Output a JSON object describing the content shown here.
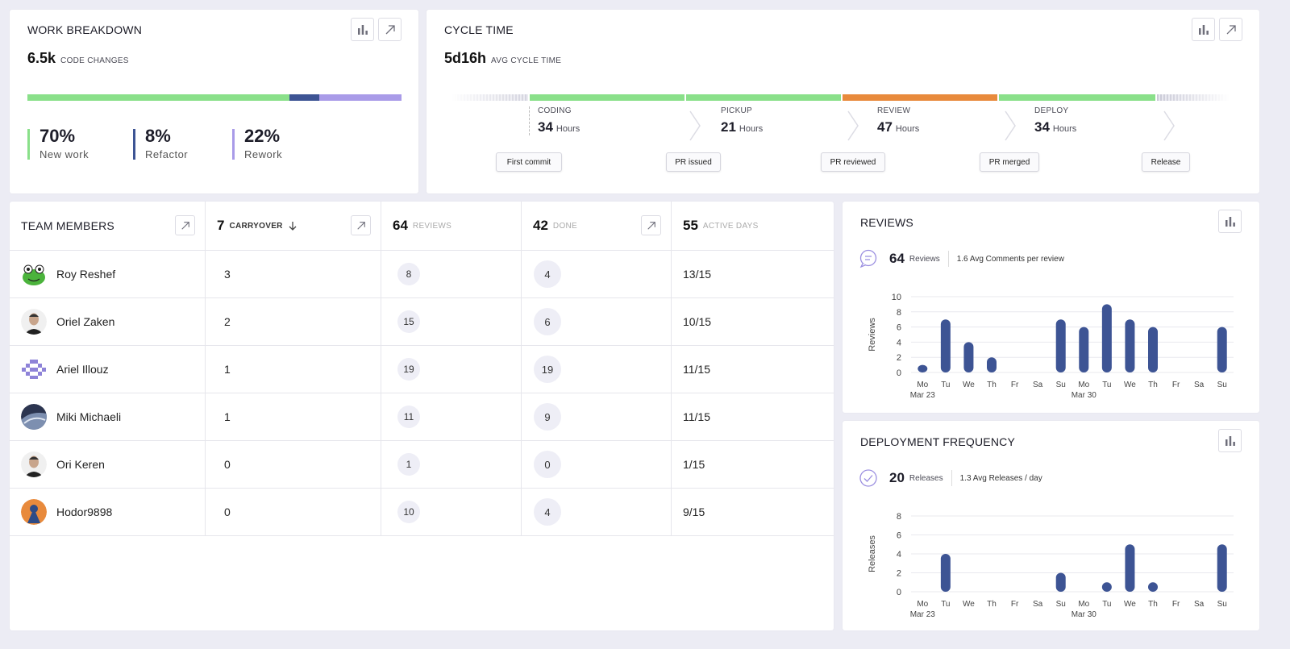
{
  "work_breakdown": {
    "title": "WORK BREAKDOWN",
    "total": "6.5k",
    "total_label": "CODE CHANGES",
    "segments": [
      {
        "pct": "70%",
        "label": "New work",
        "fraction": 0.7,
        "color": "#8ae08a"
      },
      {
        "pct": "8%",
        "label": "Refactor",
        "fraction": 0.08,
        "color": "#3d5494"
      },
      {
        "pct": "22%",
        "label": "Rework",
        "fraction": 0.22,
        "color": "#a99be8"
      }
    ]
  },
  "cycle_time": {
    "title": "CYCLE TIME",
    "value": "5d16h",
    "value_label": "AVG CYCLE TIME",
    "stages": [
      {
        "name": "CODING",
        "value": "34",
        "unit": "Hours",
        "color": "#8ae08a"
      },
      {
        "name": "PICKUP",
        "value": "21",
        "unit": "Hours",
        "color": "#8ae08a"
      },
      {
        "name": "REVIEW",
        "value": "47",
        "unit": "Hours",
        "color": "#e88a3c"
      },
      {
        "name": "DEPLOY",
        "value": "34",
        "unit": "Hours",
        "color": "#8ae08a"
      }
    ],
    "events": [
      "First commit",
      "PR issued",
      "PR reviewed",
      "PR merged",
      "Release"
    ]
  },
  "team": {
    "title": "TEAM MEMBERS",
    "columns": [
      {
        "value": "7",
        "label": "CARRYOVER"
      },
      {
        "value": "64",
        "label": "REVIEWS"
      },
      {
        "value": "42",
        "label": "DONE"
      },
      {
        "value": "55",
        "label": "ACTIVE DAYS"
      }
    ],
    "rows": [
      {
        "name": "Roy Reshef",
        "carryover": "3",
        "reviews": "8",
        "done": "4",
        "active": "13/15",
        "avatar": "frog-avatar"
      },
      {
        "name": "Oriel Zaken",
        "carryover": "2",
        "reviews": "15",
        "done": "6",
        "active": "10/15",
        "avatar": "person-avatar"
      },
      {
        "name": "Ariel Illouz",
        "carryover": "1",
        "reviews": "19",
        "done": "19",
        "active": "11/15",
        "avatar": "pixel-avatar"
      },
      {
        "name": "Miki Michaeli",
        "carryover": "1",
        "reviews": "11",
        "done": "9",
        "active": "11/15",
        "avatar": "photo-avatar"
      },
      {
        "name": "Ori Keren",
        "carryover": "0",
        "reviews": "1",
        "done": "0",
        "active": "1/15",
        "avatar": "person-avatar"
      },
      {
        "name": "Hodor9898",
        "carryover": "0",
        "reviews": "10",
        "done": "4",
        "active": "9/15",
        "avatar": "orange-avatar"
      }
    ]
  },
  "reviews": {
    "title": "REVIEWS",
    "count": "64",
    "count_label": "Reviews",
    "avg": "1.6 Avg Comments per review"
  },
  "deploy": {
    "title": "DEPLOYMENT FREQUENCY",
    "count": "20",
    "count_label": "Releases",
    "avg": "1.3 Avg Releases / day"
  },
  "chart_data": [
    {
      "type": "bar",
      "title": "REVIEWS",
      "ylabel": "Reviews",
      "ylim": [
        0,
        10
      ],
      "yticks": [
        0,
        2,
        4,
        6,
        8,
        10
      ],
      "categories": [
        "Mo",
        "Tu",
        "We",
        "Th",
        "Fr",
        "Sa",
        "Su",
        "Mo",
        "Tu",
        "We",
        "Th",
        "Fr",
        "Sa",
        "Su"
      ],
      "sublabels": [
        "Mar 23",
        "",
        "",
        "",
        "",
        "",
        "",
        "Mar 30",
        "",
        "",
        "",
        "",
        "",
        ""
      ],
      "values": [
        1,
        7,
        4,
        2,
        0,
        0,
        7,
        6,
        9,
        7,
        6,
        0,
        0,
        6
      ],
      "color": "#3d5494"
    },
    {
      "type": "bar",
      "title": "DEPLOYMENT FREQUENCY",
      "ylabel": "Releases",
      "ylim": [
        0,
        8
      ],
      "yticks": [
        0,
        2,
        4,
        6,
        8
      ],
      "categories": [
        "Mo",
        "Tu",
        "We",
        "Th",
        "Fr",
        "Sa",
        "Su",
        "Mo",
        "Tu",
        "We",
        "Th",
        "Fr",
        "Sa",
        "Su"
      ],
      "sublabels": [
        "Mar 23",
        "",
        "",
        "",
        "",
        "",
        "",
        "Mar 30",
        "",
        "",
        "",
        "",
        "",
        ""
      ],
      "values": [
        0,
        4,
        0,
        0,
        0,
        0,
        2,
        0,
        1,
        5,
        1,
        0,
        0,
        5
      ],
      "color": "#3d5494"
    }
  ]
}
